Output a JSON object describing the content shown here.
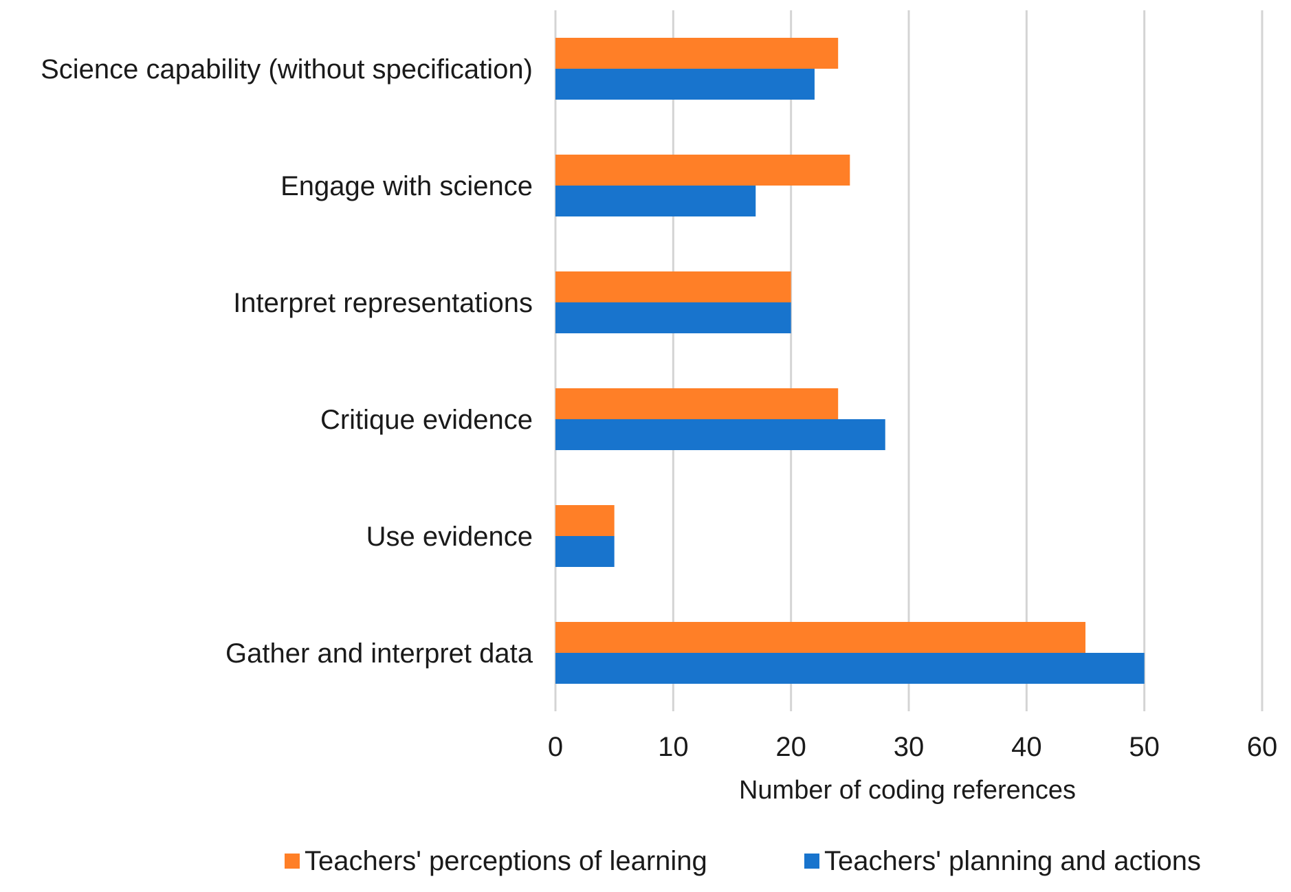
{
  "chart_data": {
    "type": "bar",
    "orientation": "horizontal",
    "categories": [
      "Science capability (without specification)",
      "Engage with science",
      "Interpret representations",
      "Critique evidence",
      "Use evidence",
      "Gather and interpret data"
    ],
    "series": [
      {
        "name": "Teachers' perceptions of learning",
        "color": "#FF7F27",
        "values": [
          24,
          25,
          20,
          24,
          5,
          45
        ]
      },
      {
        "name": "Teachers' planning and actions",
        "color": "#1874CD",
        "values": [
          22,
          17,
          20,
          28,
          5,
          50
        ]
      }
    ],
    "xlabel": "Number of coding references",
    "xlim": [
      0,
      60
    ],
    "xticks": [
      0,
      10,
      20,
      30,
      40,
      50,
      60
    ],
    "grid": "vertical",
    "legend": "bottom"
  }
}
